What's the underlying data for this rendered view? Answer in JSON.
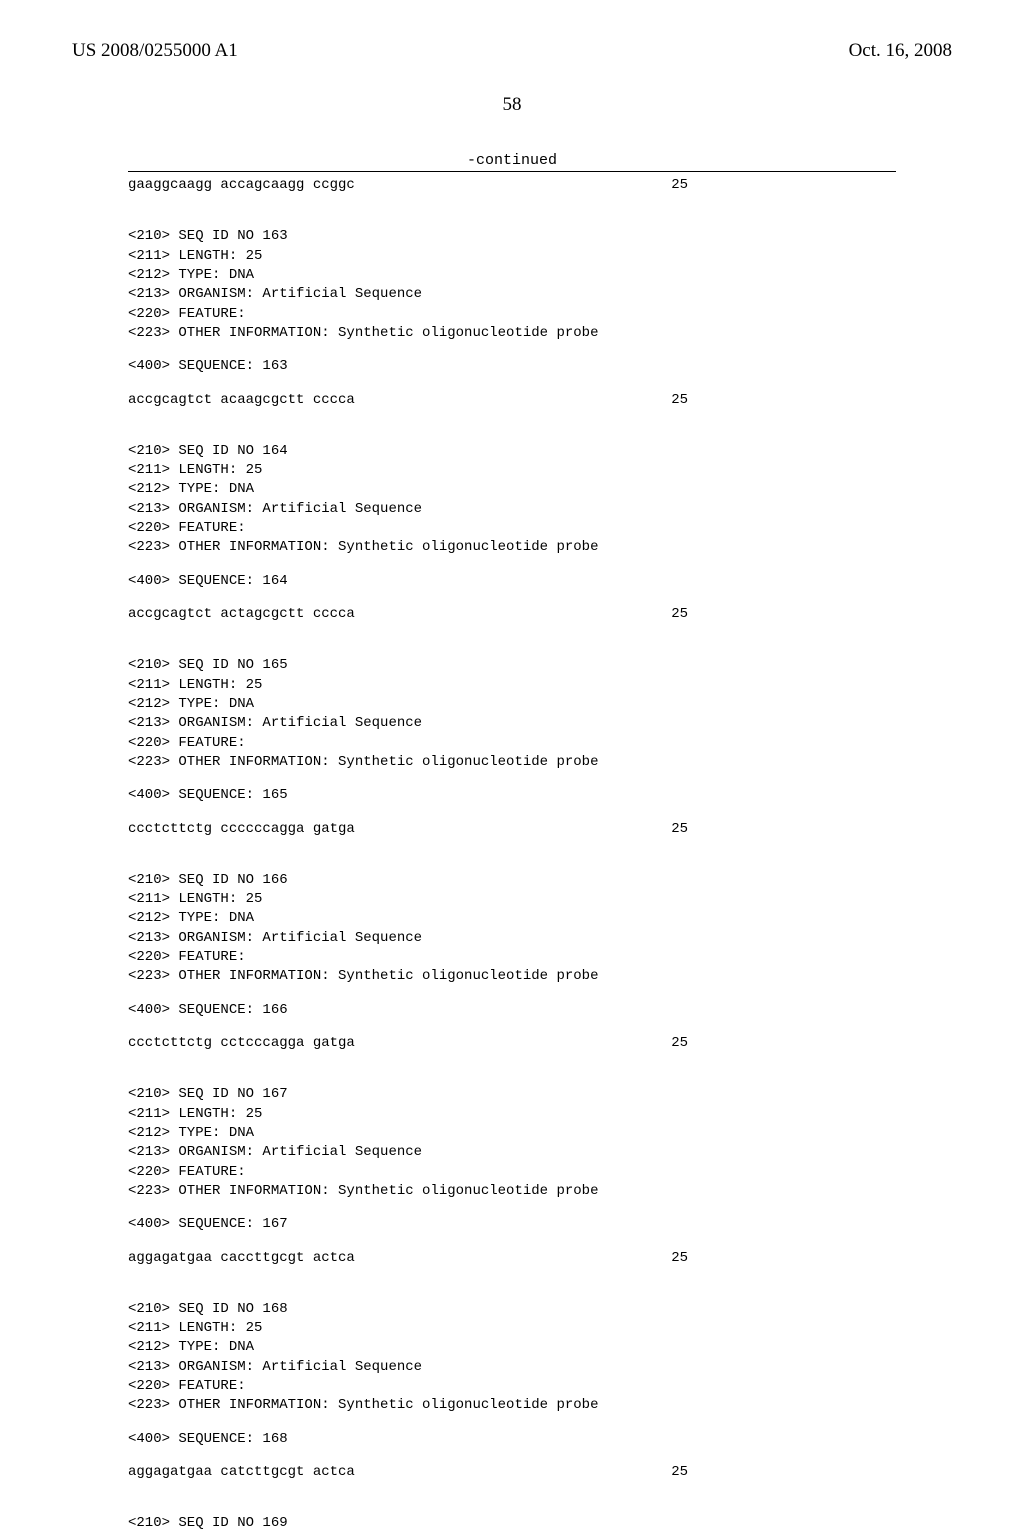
{
  "header": {
    "pub_number": "US 2008/0255000 A1",
    "pub_date": "Oct. 16, 2008"
  },
  "page_number": "58",
  "continued_label": "-continued",
  "top_seq": {
    "line": "gaaggcaagg accagcaagg ccggc",
    "len": "25"
  },
  "entries": [
    {
      "id": "163",
      "lines": [
        "<210> SEQ ID NO 163",
        "<211> LENGTH: 25",
        "<212> TYPE: DNA",
        "<213> ORGANISM: Artificial Sequence",
        "<220> FEATURE:",
        "<223> OTHER INFORMATION: Synthetic oligonucleotide probe"
      ],
      "seqlabel": "<400> SEQUENCE: 163",
      "seq": {
        "line": "accgcagtct acaagcgctt cccca",
        "len": "25"
      }
    },
    {
      "id": "164",
      "lines": [
        "<210> SEQ ID NO 164",
        "<211> LENGTH: 25",
        "<212> TYPE: DNA",
        "<213> ORGANISM: Artificial Sequence",
        "<220> FEATURE:",
        "<223> OTHER INFORMATION: Synthetic oligonucleotide probe"
      ],
      "seqlabel": "<400> SEQUENCE: 164",
      "seq": {
        "line": "accgcagtct actagcgctt cccca",
        "len": "25"
      }
    },
    {
      "id": "165",
      "lines": [
        "<210> SEQ ID NO 165",
        "<211> LENGTH: 25",
        "<212> TYPE: DNA",
        "<213> ORGANISM: Artificial Sequence",
        "<220> FEATURE:",
        "<223> OTHER INFORMATION: Synthetic oligonucleotide probe"
      ],
      "seqlabel": "<400> SEQUENCE: 165",
      "seq": {
        "line": "ccctcttctg ccccccagga gatga",
        "len": "25"
      }
    },
    {
      "id": "166",
      "lines": [
        "<210> SEQ ID NO 166",
        "<211> LENGTH: 25",
        "<212> TYPE: DNA",
        "<213> ORGANISM: Artificial Sequence",
        "<220> FEATURE:",
        "<223> OTHER INFORMATION: Synthetic oligonucleotide probe"
      ],
      "seqlabel": "<400> SEQUENCE: 166",
      "seq": {
        "line": "ccctcttctg cctcccagga gatga",
        "len": "25"
      }
    },
    {
      "id": "167",
      "lines": [
        "<210> SEQ ID NO 167",
        "<211> LENGTH: 25",
        "<212> TYPE: DNA",
        "<213> ORGANISM: Artificial Sequence",
        "<220> FEATURE:",
        "<223> OTHER INFORMATION: Synthetic oligonucleotide probe"
      ],
      "seqlabel": "<400> SEQUENCE: 167",
      "seq": {
        "line": "aggagatgaa caccttgcgt actca",
        "len": "25"
      }
    },
    {
      "id": "168",
      "lines": [
        "<210> SEQ ID NO 168",
        "<211> LENGTH: 25",
        "<212> TYPE: DNA",
        "<213> ORGANISM: Artificial Sequence",
        "<220> FEATURE:",
        "<223> OTHER INFORMATION: Synthetic oligonucleotide probe"
      ],
      "seqlabel": "<400> SEQUENCE: 168",
      "seq": {
        "line": "aggagatgaa catcttgcgt actca",
        "len": "25"
      }
    }
  ],
  "trailing_line": "<210> SEQ ID NO 169"
}
